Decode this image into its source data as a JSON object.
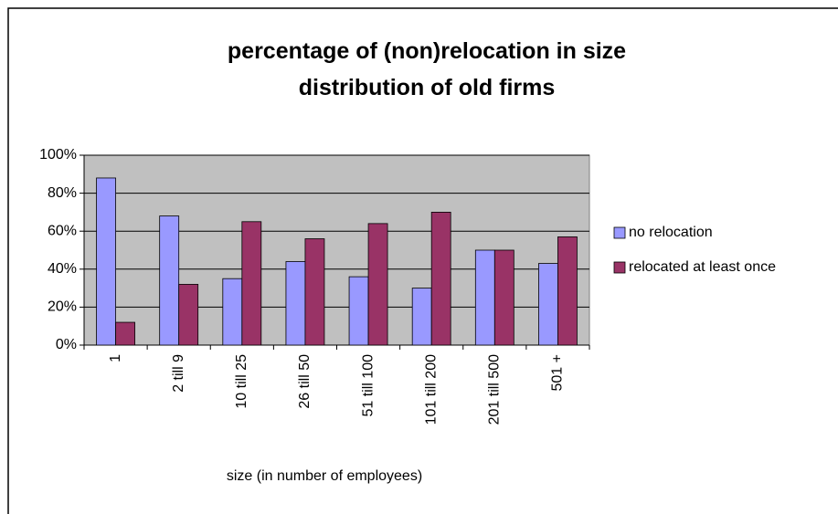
{
  "chart_data": {
    "type": "bar",
    "title": "percentage of (non)relocation in size distribution of old firms",
    "x_label": "size (in number of employees)",
    "categories": [
      "1",
      "2 till 9",
      "10 till 25",
      "26 till 50",
      "51 till 100",
      "101 till 200",
      "201 till 500",
      "501 +"
    ],
    "series": [
      {
        "name": "no relocation",
        "color": "#9999ff",
        "values": [
          88,
          68,
          35,
          44,
          36,
          30,
          50,
          43
        ]
      },
      {
        "name": "relocated at least once",
        "color": "#993366",
        "values": [
          12,
          32,
          65,
          56,
          64,
          70,
          50,
          57
        ]
      }
    ],
    "ylim": [
      0,
      100
    ],
    "yticks": [
      {
        "value": 0,
        "label": "0%"
      },
      {
        "value": 20,
        "label": "20%"
      },
      {
        "value": 40,
        "label": "40%"
      },
      {
        "value": 60,
        "label": "60%"
      },
      {
        "value": 80,
        "label": "80%"
      },
      {
        "value": 100,
        "label": "100%"
      }
    ],
    "grid": true
  }
}
